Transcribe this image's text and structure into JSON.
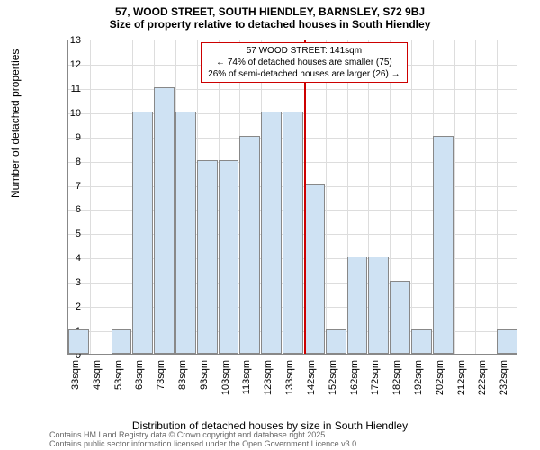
{
  "title_main": "57, WOOD STREET, SOUTH HIENDLEY, BARNSLEY, S72 9BJ",
  "title_sub": "Size of property relative to detached houses in South Hiendley",
  "ylabel": "Number of detached properties",
  "xlabel": "Distribution of detached houses by size in South Hiendley",
  "footer_line1": "Contains HM Land Registry data © Crown copyright and database right 2025.",
  "footer_line2": "Contains public sector information licensed under the Open Government Licence v3.0.",
  "chart": {
    "type": "histogram",
    "ylim": [
      0,
      13
    ],
    "ytick_step": 1,
    "yticks": [
      0,
      1,
      2,
      3,
      4,
      5,
      6,
      7,
      8,
      9,
      10,
      11,
      12,
      13
    ],
    "x_start": 33,
    "x_step": 10,
    "x_count": 21,
    "x_unit": "sqm",
    "xticks": [
      "33sqm",
      "43sqm",
      "53sqm",
      "63sqm",
      "73sqm",
      "83sqm",
      "93sqm",
      "103sqm",
      "113sqm",
      "123sqm",
      "133sqm",
      "142sqm",
      "152sqm",
      "162sqm",
      "172sqm",
      "182sqm",
      "192sqm",
      "202sqm",
      "212sqm",
      "222sqm",
      "232sqm"
    ],
    "bar_values": [
      1,
      0,
      1,
      10,
      11,
      10,
      8,
      8,
      9,
      10,
      10,
      7,
      1,
      4,
      4,
      3,
      1,
      9,
      0,
      0,
      1
    ],
    "bar_fill": "#cfe2f3",
    "bar_border": "#888888",
    "grid_color": "#dddddd",
    "background_color": "#ffffff",
    "reference_line": {
      "x_index": 11,
      "color": "#cc0000"
    },
    "annotation": {
      "line1": "57 WOOD STREET: 141sqm",
      "line2": "← 74% of detached houses are smaller (75)",
      "line3": "26% of semi-detached houses are larger (26) →",
      "border_color": "#cc0000",
      "background": "#ffffff",
      "fontsize": 10
    }
  }
}
